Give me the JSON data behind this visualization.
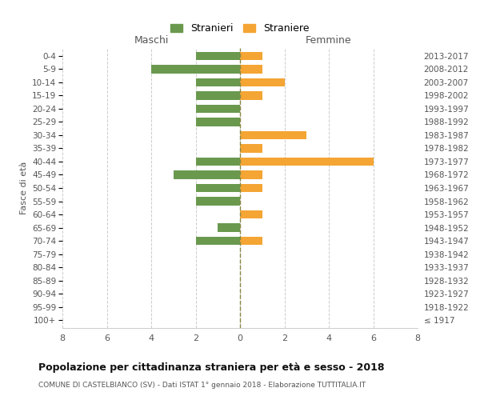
{
  "age_groups": [
    "100+",
    "95-99",
    "90-94",
    "85-89",
    "80-84",
    "75-79",
    "70-74",
    "65-69",
    "60-64",
    "55-59",
    "50-54",
    "45-49",
    "40-44",
    "35-39",
    "30-34",
    "25-29",
    "20-24",
    "15-19",
    "10-14",
    "5-9",
    "0-4"
  ],
  "birth_years": [
    "≤ 1917",
    "1918-1922",
    "1923-1927",
    "1928-1932",
    "1933-1937",
    "1938-1942",
    "1943-1947",
    "1948-1952",
    "1953-1957",
    "1958-1962",
    "1963-1967",
    "1968-1972",
    "1973-1977",
    "1978-1982",
    "1983-1987",
    "1988-1992",
    "1993-1997",
    "1998-2002",
    "2003-2007",
    "2008-2012",
    "2013-2017"
  ],
  "stranieri": [
    0,
    0,
    0,
    0,
    0,
    0,
    2,
    1,
    0,
    2,
    2,
    3,
    2,
    0,
    0,
    2,
    2,
    2,
    2,
    4,
    2
  ],
  "straniere": [
    0,
    0,
    0,
    0,
    0,
    0,
    1,
    0,
    1,
    0,
    1,
    1,
    6,
    1,
    3,
    0,
    0,
    1,
    2,
    1,
    1
  ],
  "color_stranieri": "#6a994e",
  "color_straniere": "#f4a534",
  "title": "Popolazione per cittadinanza straniera per età e sesso - 2018",
  "subtitle": "COMUNE DI CASTELBIANCO (SV) - Dati ISTAT 1° gennaio 2018 - Elaborazione TUTTITALIA.IT",
  "xlabel_maschi": "Maschi",
  "xlabel_femmine": "Femmine",
  "ylabel_left": "Fasce di età",
  "legend_stranieri": "Stranieri",
  "legend_straniere": "Straniere",
  "xlim": 8,
  "background_color": "#ffffff",
  "grid_color": "#cccccc"
}
